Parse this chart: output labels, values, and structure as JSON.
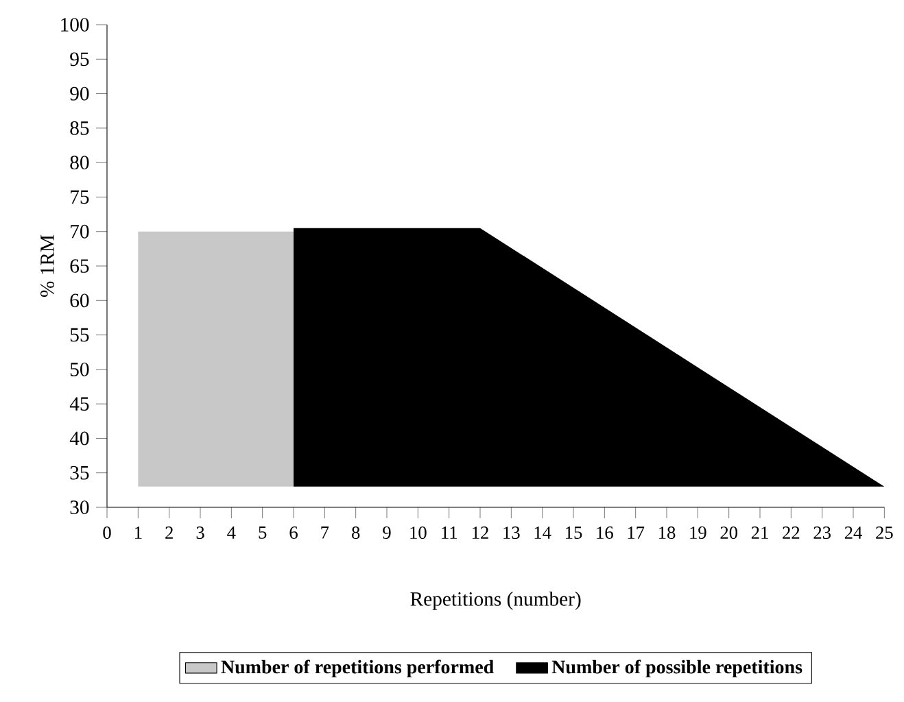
{
  "chart_data": {
    "type": "area",
    "xlabel": "Repetitions (number)",
    "ylabel": "% 1RM",
    "xlim": [
      0,
      25
    ],
    "xticks": [
      0,
      1,
      2,
      3,
      4,
      5,
      6,
      7,
      8,
      9,
      10,
      11,
      12,
      13,
      14,
      15,
      16,
      17,
      18,
      19,
      20,
      21,
      22,
      23,
      24,
      25
    ],
    "ylim": [
      30,
      100
    ],
    "yticks": [
      30,
      35,
      40,
      45,
      50,
      55,
      60,
      65,
      70,
      75,
      80,
      85,
      90,
      95,
      100
    ],
    "grid": false,
    "legend": "bottom",
    "series": [
      {
        "name": "Number of possible repetitions",
        "color": "#000000",
        "x": [
          6,
          12,
          25
        ],
        "values": [
          null,
          null,
          null
        ],
        "upper": [
          70.5,
          70.5,
          33
        ],
        "lower": [
          33,
          33,
          33
        ]
      },
      {
        "name": "Number of repetitions performed",
        "color": "#c8c8c8",
        "x": [
          1,
          2,
          3,
          4,
          5,
          6
        ],
        "values": [
          null,
          null,
          null,
          null,
          null,
          null
        ],
        "upper": [
          70,
          70,
          70,
          70,
          70,
          70
        ],
        "lower": [
          33,
          33,
          33,
          33,
          33,
          33
        ]
      }
    ]
  }
}
